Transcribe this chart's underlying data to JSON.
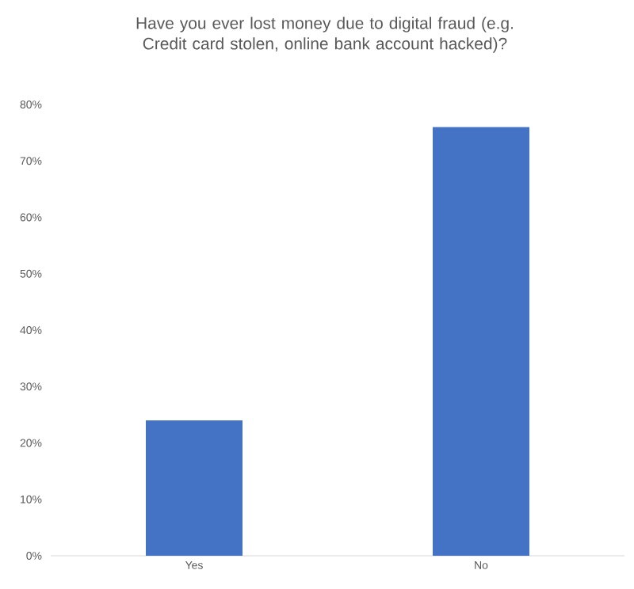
{
  "chart_data": {
    "type": "bar",
    "title": "Have you ever lost money due to digital fraud (e.g. Credit card stolen, online bank account hacked)?",
    "categories": [
      "Yes",
      "No"
    ],
    "values": [
      24,
      76
    ],
    "color": "#4472c4",
    "ylim": [
      0,
      80
    ],
    "yticks": [
      {
        "value": 0,
        "label": "0%"
      },
      {
        "value": 10,
        "label": "10%"
      },
      {
        "value": 20,
        "label": "20%"
      },
      {
        "value": 30,
        "label": "30%"
      },
      {
        "value": 40,
        "label": "40%"
      },
      {
        "value": 50,
        "label": "50%"
      },
      {
        "value": 60,
        "label": "60%"
      },
      {
        "value": 70,
        "label": "70%"
      },
      {
        "value": 80,
        "label": "80%"
      }
    ],
    "grid": false
  }
}
